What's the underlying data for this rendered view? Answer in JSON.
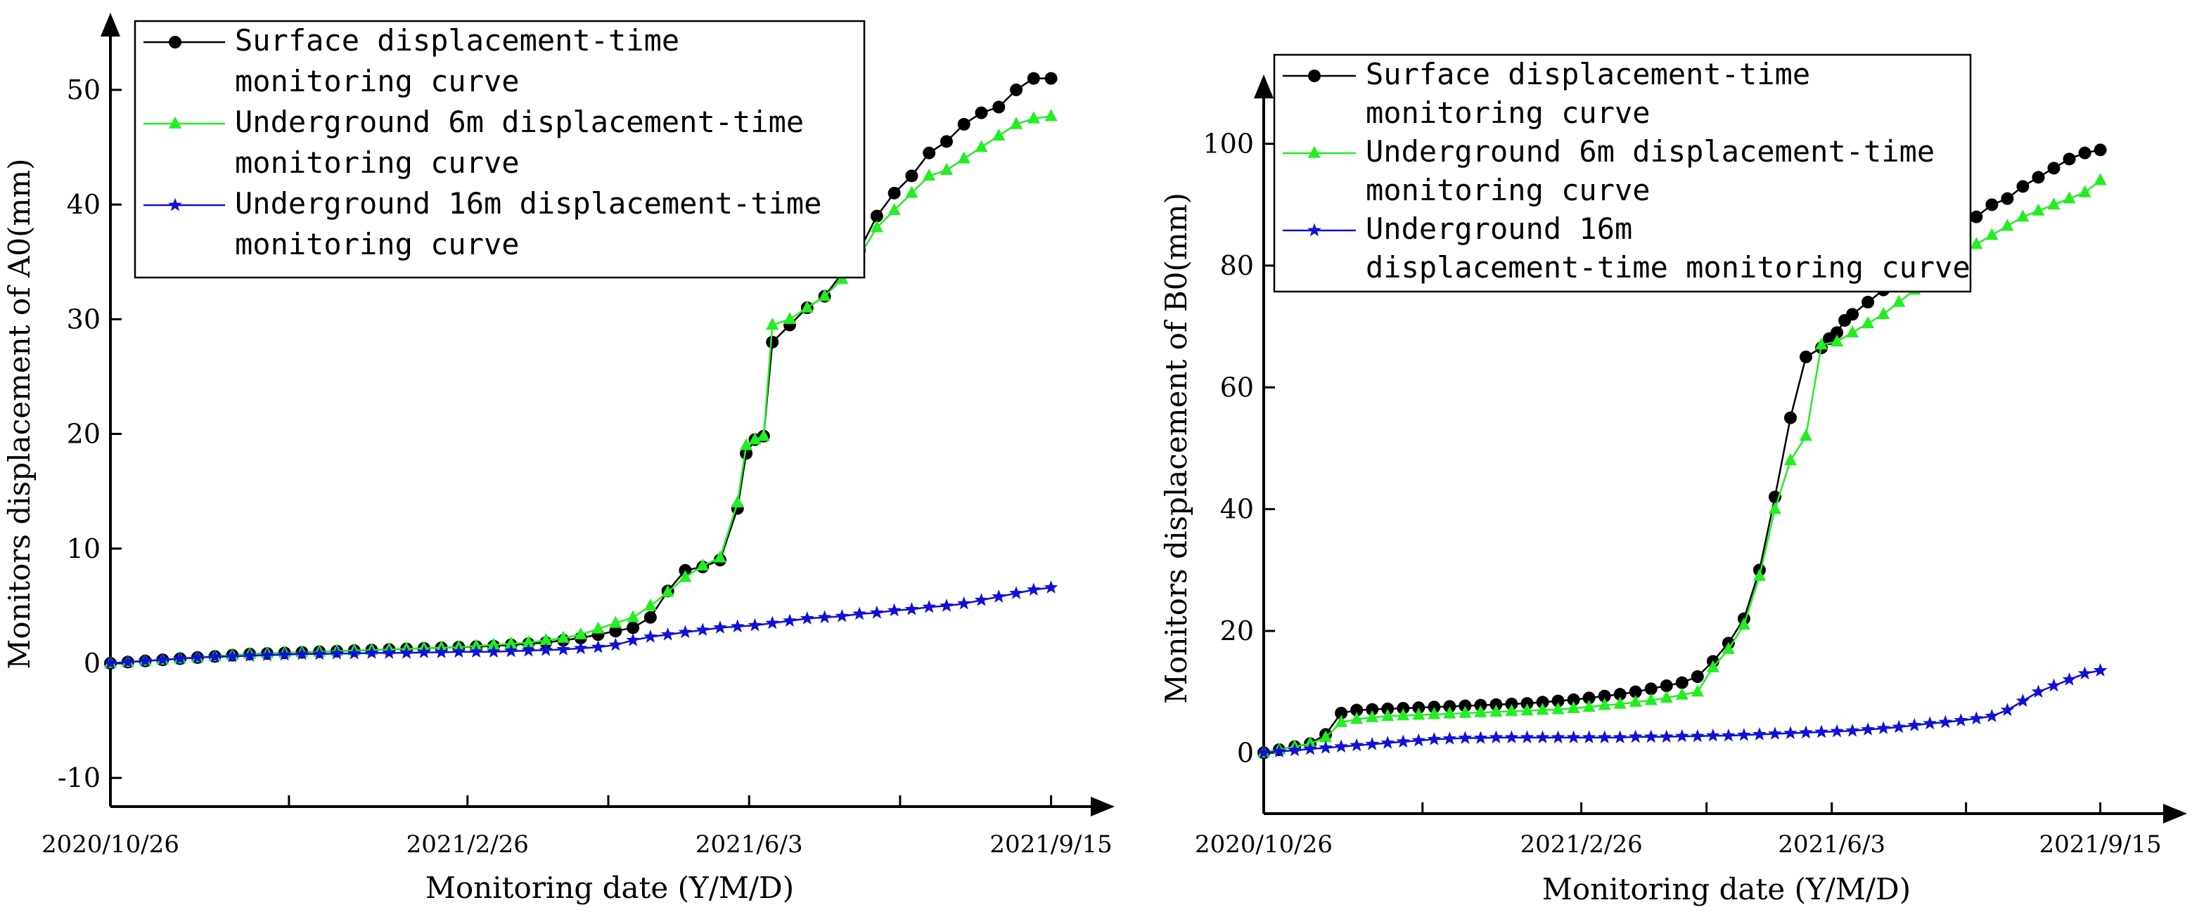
{
  "colors": {
    "surface": "#000000",
    "underground6": "#22ee22",
    "underground16": "#1010d8",
    "axis": "#000000"
  },
  "chart_data": [
    {
      "type": "line",
      "title": "",
      "xlabel": "Monitoring date (Y/M/D)",
      "ylabel": "Monitors displacement of A0(mm)",
      "ylim": [
        -12.5,
        56
      ],
      "yticks": [
        -10,
        0,
        10,
        20,
        30,
        40,
        50
      ],
      "ytick_labels": [
        "-10",
        "0",
        "10",
        "20",
        "30",
        "40",
        "50"
      ],
      "xlim": [
        0,
        335
      ],
      "date_ticks": [
        {
          "x": 0,
          "label": "2020/10/26"
        },
        {
          "x": 123,
          "label": "2021/2/26"
        },
        {
          "x": 220,
          "label": "2021/6/3"
        },
        {
          "x": 324,
          "label": "2021/9/15"
        }
      ],
      "legend_location": "top-left",
      "legend": [
        {
          "name": "Surface displacement-time monitoring curve",
          "lines": [
            "Surface displacement-time",
            "monitoring curve"
          ],
          "marker": "circle",
          "color": "#000000"
        },
        {
          "name": "Underground 6m displacement-time monitoring curve",
          "lines": [
            "Underground 6m displacement-time",
            "monitoring curve"
          ],
          "marker": "triangle",
          "color": "#22ee22"
        },
        {
          "name": "Underground 16m displacement-time monitoring curve",
          "lines": [
            "Underground 16m displacement-time",
            "monitoring curve"
          ],
          "marker": "star",
          "color": "#1010d8"
        }
      ],
      "series": [
        {
          "name": "Surface displacement-time monitoring curve",
          "marker": "circle",
          "color": "#000000",
          "x": [
            0,
            6,
            12,
            18,
            24,
            30,
            36,
            42,
            48,
            54,
            60,
            66,
            72,
            78,
            84,
            90,
            96,
            102,
            108,
            114,
            120,
            126,
            132,
            138,
            144,
            150,
            156,
            162,
            168,
            174,
            180,
            186,
            192,
            198,
            204,
            210,
            216,
            219,
            222,
            225,
            228,
            234,
            240,
            246,
            252,
            258,
            264,
            270,
            276,
            282,
            288,
            294,
            300,
            306,
            312,
            318,
            324
          ],
          "y": [
            0,
            0.1,
            0.2,
            0.3,
            0.4,
            0.5,
            0.6,
            0.7,
            0.8,
            0.85,
            0.9,
            0.95,
            1,
            1.05,
            1.1,
            1.15,
            1.2,
            1.25,
            1.3,
            1.35,
            1.4,
            1.45,
            1.5,
            1.6,
            1.7,
            1.8,
            2,
            2.2,
            2.5,
            2.8,
            3.1,
            4,
            6.3,
            8.1,
            8.4,
            9,
            13.5,
            18.3,
            19.5,
            19.8,
            28,
            29.5,
            31,
            32,
            34,
            36,
            39,
            41,
            42.5,
            44.5,
            45.5,
            47,
            48,
            48.5,
            50,
            51,
            51
          ]
        },
        {
          "name": "Underground 6m displacement-time monitoring curve",
          "marker": "triangle",
          "color": "#22ee22",
          "x": [
            0,
            6,
            12,
            18,
            24,
            30,
            36,
            42,
            48,
            54,
            60,
            66,
            72,
            78,
            84,
            90,
            96,
            102,
            108,
            114,
            120,
            126,
            132,
            138,
            144,
            150,
            156,
            162,
            168,
            174,
            180,
            186,
            192,
            198,
            204,
            210,
            216,
            219,
            222,
            225,
            228,
            234,
            240,
            246,
            252,
            258,
            264,
            270,
            276,
            282,
            288,
            294,
            300,
            306,
            312,
            318,
            324
          ],
          "y": [
            0,
            0.1,
            0.2,
            0.3,
            0.4,
            0.5,
            0.6,
            0.7,
            0.8,
            0.85,
            0.9,
            0.95,
            1,
            1.05,
            1.1,
            1.15,
            1.2,
            1.25,
            1.3,
            1.35,
            1.4,
            1.5,
            1.6,
            1.7,
            1.8,
            2,
            2.2,
            2.5,
            3,
            3.5,
            4,
            5,
            6.2,
            7.5,
            8.5,
            9.2,
            14,
            19,
            19.5,
            19.8,
            29.5,
            30,
            31,
            32,
            33.5,
            35.5,
            38,
            39.5,
            41,
            42.5,
            43,
            44,
            45,
            46,
            47,
            47.5,
            47.7
          ]
        },
        {
          "name": "Underground 16m displacement-time monitoring curve",
          "marker": "star",
          "color": "#1010d8",
          "x": [
            0,
            6,
            12,
            18,
            24,
            30,
            36,
            42,
            48,
            54,
            60,
            66,
            72,
            78,
            84,
            90,
            96,
            102,
            108,
            114,
            120,
            126,
            132,
            138,
            144,
            150,
            156,
            162,
            168,
            174,
            180,
            186,
            192,
            198,
            204,
            210,
            216,
            222,
            228,
            234,
            240,
            246,
            252,
            258,
            264,
            270,
            276,
            282,
            288,
            294,
            300,
            306,
            312,
            318,
            324
          ],
          "y": [
            0,
            0.1,
            0.2,
            0.3,
            0.4,
            0.5,
            0.55,
            0.6,
            0.65,
            0.7,
            0.75,
            0.8,
            0.8,
            0.85,
            0.85,
            0.9,
            0.9,
            0.9,
            0.95,
            0.95,
            1,
            1,
            1,
            1.05,
            1.1,
            1.15,
            1.2,
            1.3,
            1.4,
            1.6,
            2,
            2.3,
            2.5,
            2.7,
            2.9,
            3.1,
            3.2,
            3.3,
            3.5,
            3.7,
            3.9,
            4,
            4.1,
            4.3,
            4.4,
            4.6,
            4.7,
            4.9,
            5,
            5.2,
            5.5,
            5.8,
            6.1,
            6.4,
            6.6
          ]
        }
      ]
    },
    {
      "type": "line",
      "title": "",
      "xlabel": "Monitoring date (Y/M/D)",
      "ylabel": "Monitors displacement of B0(mm)",
      "ylim": [
        -10,
        110
      ],
      "yticks": [
        0,
        20,
        40,
        60,
        80,
        100
      ],
      "ytick_labels": [
        "0",
        "20",
        "40",
        "60",
        "80",
        "100"
      ],
      "xlim": [
        0,
        335
      ],
      "date_ticks": [
        {
          "x": 0,
          "label": "2020/10/26"
        },
        {
          "x": 123,
          "label": "2021/2/26"
        },
        {
          "x": 220,
          "label": "2021/6/3"
        },
        {
          "x": 324,
          "label": "2021/9/15"
        }
      ],
      "legend_location": "top-left",
      "legend": [
        {
          "name": "Surface displacement-time monitoring curve",
          "lines": [
            "Surface displacement-time",
            "monitoring curve"
          ],
          "marker": "circle",
          "color": "#000000"
        },
        {
          "name": "Underground 6m displacement-time monitoring curve",
          "lines": [
            "Underground 6m displacement-time",
            "monitoring curve"
          ],
          "marker": "triangle",
          "color": "#22ee22"
        },
        {
          "name": "Underground 16m displacement-time monitoring curve",
          "lines": [
            "Underground 16m",
            "displacement-time monitoring curve"
          ],
          "marker": "star",
          "color": "#1010d8"
        }
      ],
      "series": [
        {
          "name": "Surface displacement-time monitoring curve",
          "marker": "circle",
          "color": "#000000",
          "x": [
            0,
            6,
            12,
            18,
            24,
            30,
            36,
            42,
            48,
            54,
            60,
            66,
            72,
            78,
            84,
            90,
            96,
            102,
            108,
            114,
            120,
            126,
            132,
            138,
            144,
            150,
            156,
            162,
            168,
            174,
            180,
            186,
            192,
            198,
            204,
            210,
            216,
            219,
            222,
            225,
            228,
            234,
            240,
            246,
            252,
            258,
            264,
            270,
            276,
            282,
            288,
            294,
            300,
            306,
            312,
            318,
            324
          ],
          "y": [
            0,
            0.5,
            1,
            1.5,
            3,
            6.5,
            7,
            7.1,
            7.2,
            7.3,
            7.4,
            7.5,
            7.6,
            7.7,
            7.8,
            7.9,
            8,
            8.1,
            8.3,
            8.5,
            8.7,
            9,
            9.3,
            9.6,
            10,
            10.5,
            11,
            11.5,
            12.5,
            15,
            18,
            22,
            30,
            42,
            55,
            65,
            66.5,
            68,
            69,
            71,
            72,
            74,
            76,
            78,
            80,
            82,
            84,
            86,
            88,
            90,
            91,
            93,
            94.5,
            96,
            97.5,
            98.5,
            99
          ]
        },
        {
          "name": "Underground 6m displacement-time monitoring curve",
          "marker": "triangle",
          "color": "#22ee22",
          "x": [
            0,
            6,
            12,
            18,
            24,
            30,
            36,
            42,
            48,
            54,
            60,
            66,
            72,
            78,
            84,
            90,
            96,
            102,
            108,
            114,
            120,
            126,
            132,
            138,
            144,
            150,
            156,
            162,
            168,
            174,
            180,
            186,
            192,
            198,
            204,
            210,
            216,
            222,
            228,
            234,
            240,
            246,
            252,
            258,
            264,
            270,
            276,
            282,
            288,
            294,
            300,
            306,
            312,
            318,
            324
          ],
          "y": [
            0,
            0.5,
            1,
            1.5,
            2.5,
            5,
            5.5,
            5.8,
            6,
            6.1,
            6.2,
            6.3,
            6.4,
            6.5,
            6.6,
            6.7,
            6.8,
            6.9,
            7,
            7.1,
            7.3,
            7.5,
            7.8,
            8,
            8.3,
            8.6,
            9,
            9.5,
            10,
            14,
            17,
            21,
            29,
            40,
            48,
            52,
            67,
            67.5,
            69,
            70.5,
            72,
            74,
            76,
            78,
            80,
            82,
            83.5,
            85,
            86.5,
            88,
            89,
            90,
            91,
            92,
            94
          ]
        },
        {
          "name": "Underground 16m displacement-time monitoring curve",
          "marker": "star",
          "color": "#1010d8",
          "x": [
            0,
            6,
            12,
            18,
            24,
            30,
            36,
            42,
            48,
            54,
            60,
            66,
            72,
            78,
            84,
            90,
            96,
            102,
            108,
            114,
            120,
            126,
            132,
            138,
            144,
            150,
            156,
            162,
            168,
            174,
            180,
            186,
            192,
            198,
            204,
            210,
            216,
            222,
            228,
            234,
            240,
            246,
            252,
            258,
            264,
            270,
            276,
            282,
            288,
            294,
            300,
            306,
            312,
            318,
            324
          ],
          "y": [
            0,
            0.2,
            0.4,
            0.6,
            0.8,
            1,
            1.2,
            1.4,
            1.6,
            1.8,
            2,
            2.2,
            2.3,
            2.4,
            2.4,
            2.5,
            2.5,
            2.5,
            2.5,
            2.5,
            2.5,
            2.5,
            2.5,
            2.5,
            2.6,
            2.6,
            2.6,
            2.7,
            2.7,
            2.8,
            2.8,
            2.9,
            3,
            3.1,
            3.2,
            3.3,
            3.4,
            3.5,
            3.6,
            3.8,
            4,
            4.2,
            4.5,
            4.8,
            5,
            5.3,
            5.6,
            6,
            7,
            8.5,
            10,
            11,
            12,
            13,
            13.5
          ]
        }
      ]
    }
  ]
}
